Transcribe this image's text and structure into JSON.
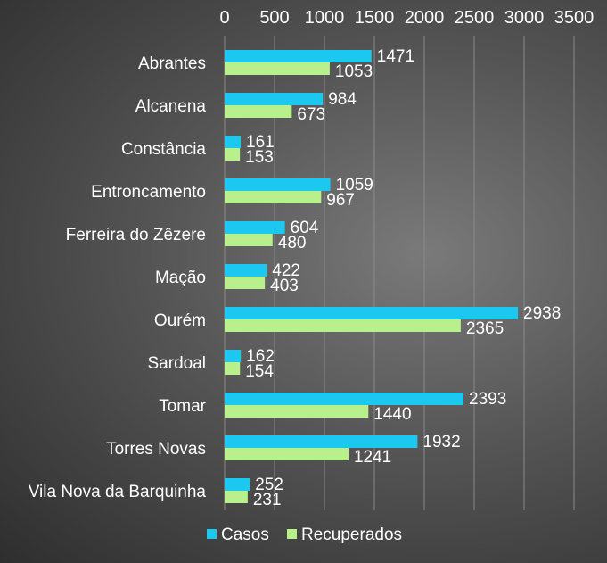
{
  "chart_data": {
    "type": "bar",
    "orientation": "horizontal",
    "categories": [
      "Abrantes",
      "Alcanena",
      "Constância",
      "Entroncamento",
      "Ferreira do Zêzere",
      "Mação",
      "Ourém",
      "Sardoal",
      "Tomar",
      "Torres Novas",
      "Vila Nova da Barquinha"
    ],
    "series": [
      {
        "name": "Casos",
        "color": "#1cc8f0",
        "values": [
          1471,
          984,
          161,
          1059,
          604,
          422,
          2938,
          162,
          2393,
          1932,
          252
        ]
      },
      {
        "name": "Recuperados",
        "color": "#b8f08c",
        "values": [
          1053,
          673,
          153,
          967,
          480,
          403,
          2365,
          154,
          1440,
          1241,
          231
        ]
      }
    ],
    "xlim": [
      0,
      3500
    ],
    "xticks": [
      "0",
      "500",
      "1000",
      "1500",
      "2000",
      "2500",
      "3000",
      "3500"
    ],
    "x_axis_position": "top",
    "grid": true,
    "legend_position": "bottom",
    "data_labels": true
  }
}
